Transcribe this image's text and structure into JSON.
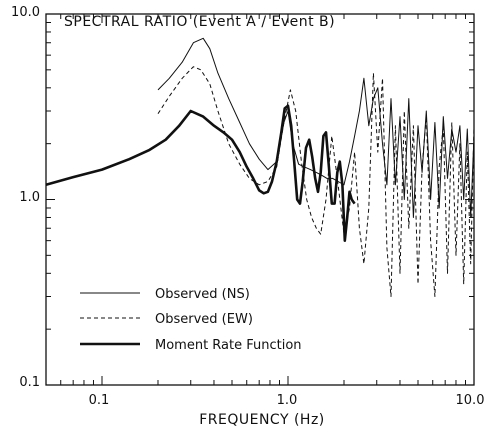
{
  "chart_data": {
    "type": "line",
    "title": "SPECTRAL RATIO  (Event A / Event B)",
    "xlabel": "FREQUENCY (Hz)",
    "ylabel": "",
    "xscale": "log",
    "yscale": "log",
    "xlim": [
      0.05,
      10.0
    ],
    "ylim": [
      0.1,
      10.0
    ],
    "x_ticks": [
      {
        "value": 0.1,
        "label": "0.1"
      },
      {
        "value": 1.0,
        "label": "1.0"
      },
      {
        "value": 10.0,
        "label": "10.0"
      }
    ],
    "y_ticks": [
      {
        "value": 0.1,
        "label": "0.1"
      },
      {
        "value": 1.0,
        "label": "1.0"
      },
      {
        "value": 10.0,
        "label": "10.0"
      }
    ],
    "grid": false,
    "legend_position": "lower-left",
    "series": [
      {
        "name": "Observed (NS)",
        "style": "thin-solid",
        "x": [
          0.2,
          0.23,
          0.27,
          0.31,
          0.35,
          0.38,
          0.42,
          0.48,
          0.55,
          0.62,
          0.7,
          0.78,
          0.87,
          0.95,
          1.0,
          1.06,
          1.14,
          1.22,
          1.32,
          1.42,
          1.52,
          1.62,
          1.74,
          1.86,
          2.0,
          2.14,
          2.28,
          2.42,
          2.56,
          2.72,
          2.88,
          3.04,
          3.22,
          3.4,
          3.58,
          3.78,
          4.0,
          4.22,
          4.46,
          4.72,
          5.0,
          5.26,
          5.54,
          5.84,
          6.16,
          6.5,
          6.84,
          7.2,
          7.6,
          8.0,
          8.4,
          8.8,
          9.2,
          9.6,
          10.0
        ],
        "y": [
          3.9,
          4.5,
          5.5,
          7.0,
          7.4,
          6.5,
          4.8,
          3.5,
          2.6,
          2.0,
          1.65,
          1.45,
          1.6,
          2.6,
          3.0,
          2.0,
          1.55,
          1.5,
          1.45,
          1.4,
          1.35,
          1.3,
          1.3,
          1.25,
          1.2,
          1.6,
          2.2,
          3.0,
          4.5,
          2.5,
          3.5,
          4.0,
          2.0,
          1.2,
          3.5,
          1.2,
          2.8,
          1.0,
          3.5,
          0.8,
          2.5,
          1.4,
          3.0,
          1.0,
          2.6,
          0.9,
          2.8,
          1.3,
          2.4,
          1.8,
          2.5,
          1.0,
          2.4,
          0.8,
          2.2
        ]
      },
      {
        "name": "Observed (EW)",
        "style": "dashed",
        "x": [
          0.2,
          0.23,
          0.27,
          0.31,
          0.34,
          0.38,
          0.42,
          0.48,
          0.55,
          0.62,
          0.7,
          0.78,
          0.87,
          0.95,
          1.03,
          1.1,
          1.18,
          1.26,
          1.34,
          1.42,
          1.5,
          1.6,
          1.72,
          1.86,
          2.0,
          2.14,
          2.28,
          2.42,
          2.56,
          2.72,
          2.88,
          3.04,
          3.22,
          3.4,
          3.58,
          3.78,
          4.0,
          4.22,
          4.46,
          4.72,
          5.0,
          5.26,
          5.54,
          5.84,
          6.16,
          6.5,
          6.84,
          7.2,
          7.6,
          8.0,
          8.4,
          8.8,
          9.2,
          9.6,
          10.0
        ],
        "y": [
          2.9,
          3.6,
          4.5,
          5.2,
          5.0,
          4.2,
          3.0,
          2.0,
          1.55,
          1.3,
          1.2,
          1.25,
          1.5,
          2.6,
          3.9,
          3.0,
          1.6,
          1.0,
          0.8,
          0.7,
          0.65,
          1.0,
          2.2,
          1.2,
          0.65,
          0.9,
          1.8,
          0.7,
          0.45,
          0.9,
          4.8,
          1.8,
          4.5,
          0.55,
          0.3,
          2.5,
          0.4,
          3.0,
          0.7,
          2.5,
          0.35,
          1.5,
          2.8,
          0.6,
          0.3,
          1.5,
          2.5,
          0.4,
          2.6,
          0.5,
          2.0,
          0.35,
          1.8,
          0.45,
          2.5
        ]
      },
      {
        "name": "Moment Rate Function",
        "style": "thick-solid",
        "x": [
          0.05,
          0.07,
          0.1,
          0.14,
          0.18,
          0.22,
          0.26,
          0.3,
          0.35,
          0.4,
          0.45,
          0.5,
          0.55,
          0.6,
          0.65,
          0.7,
          0.74,
          0.78,
          0.82,
          0.87,
          0.92,
          0.96,
          1.0,
          1.04,
          1.08,
          1.12,
          1.16,
          1.2,
          1.25,
          1.3,
          1.35,
          1.4,
          1.45,
          1.5,
          1.55,
          1.6,
          1.66,
          1.72,
          1.78,
          1.84,
          1.9,
          1.96,
          2.02,
          2.08,
          2.14,
          2.2,
          2.28
        ],
        "y": [
          1.2,
          1.32,
          1.45,
          1.65,
          1.85,
          2.1,
          2.5,
          3.0,
          2.8,
          2.5,
          2.3,
          2.1,
          1.8,
          1.5,
          1.3,
          1.12,
          1.08,
          1.1,
          1.25,
          1.6,
          2.3,
          3.1,
          3.2,
          2.5,
          1.6,
          1.0,
          0.95,
          1.25,
          1.9,
          2.1,
          1.7,
          1.3,
          1.1,
          1.4,
          2.2,
          2.3,
          1.5,
          0.95,
          0.95,
          1.4,
          1.6,
          1.2,
          0.6,
          0.8,
          1.1,
          1.0,
          0.95
        ]
      }
    ]
  }
}
